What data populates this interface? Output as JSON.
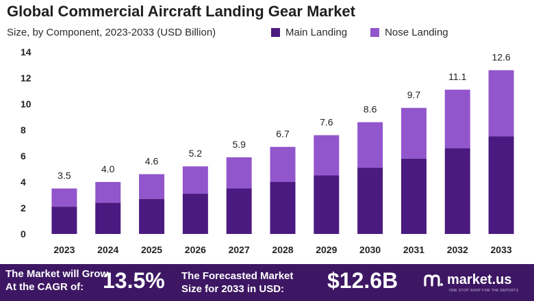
{
  "title": "Global Commercial Aircraft Landing Gear Market",
  "subtitle": "Size, by Component, 2023-2033 (USD Billion)",
  "colors": {
    "main": "#4b1a80",
    "nose": "#9256cc",
    "banner": "#3d1763"
  },
  "chart_data": {
    "type": "bar",
    "stacked": true,
    "categories": [
      "2023",
      "2024",
      "2025",
      "2026",
      "2027",
      "2028",
      "2029",
      "2030",
      "2031",
      "2032",
      "2033"
    ],
    "series": [
      {
        "name": "Main Landing",
        "values": [
          2.1,
          2.4,
          2.7,
          3.1,
          3.5,
          4.0,
          4.5,
          5.1,
          5.8,
          6.6,
          7.5
        ]
      },
      {
        "name": "Nose Landing",
        "values": [
          1.4,
          1.6,
          1.9,
          2.1,
          2.4,
          2.7,
          3.1,
          3.5,
          3.9,
          4.5,
          5.1
        ]
      }
    ],
    "totals": [
      "3.5",
      "4.0",
      "4.6",
      "5.2",
      "5.9",
      "6.7",
      "7.6",
      "8.6",
      "9.7",
      "11.1",
      "12.6"
    ],
    "yticks": [
      "0",
      "2",
      "4",
      "6",
      "8",
      "10",
      "12",
      "14"
    ],
    "ylim": [
      0,
      14
    ],
    "grid": false,
    "legend_position": "top-right"
  },
  "banner": {
    "grow_text": "The Market will Grow\nAt the CAGR of:",
    "cagr": "13.5%",
    "forecast_text": "The Forecasted Market\nSize for 2033 in USD:",
    "size": "$12.6B",
    "logo": "market.us",
    "tagline": "ONE STOP SHOP FOR THE REPORTS"
  }
}
